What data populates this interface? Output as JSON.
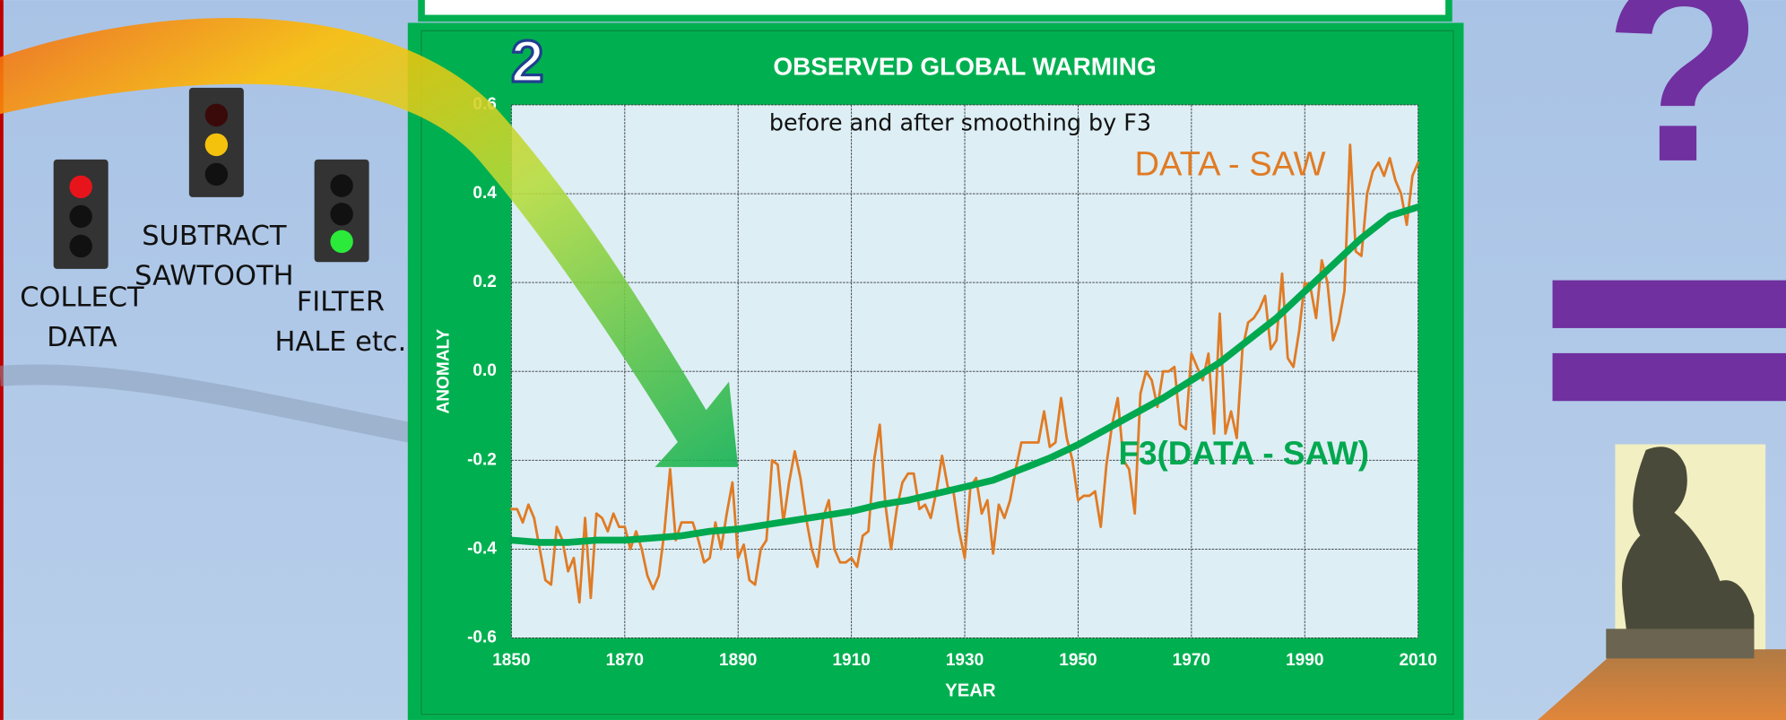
{
  "chart_data": {
    "type": "line",
    "badge": "2",
    "title": "OBSERVED GLOBAL WARMING",
    "subtitle": "before and after smoothing by F3",
    "xlabel": "YEAR",
    "ylabel": "ANOMALY",
    "xlim": [
      1850,
      2010
    ],
    "xticks": [
      1850,
      1870,
      1890,
      1910,
      1930,
      1950,
      1970,
      1990,
      2010
    ],
    "ylim": [
      -0.6,
      0.6
    ],
    "yticks": [
      -0.6,
      -0.4,
      -0.2,
      {
        "value": 0,
        "label": "0.0"
      },
      0.2,
      0.4,
      0.6
    ],
    "grid": true,
    "series": [
      {
        "name": "DATA - SAW",
        "color": "#e07b24",
        "x": [
          1850,
          1851,
          1852,
          1853,
          1854,
          1855,
          1856,
          1857,
          1858,
          1859,
          1860,
          1861,
          1862,
          1863,
          1864,
          1865,
          1866,
          1867,
          1868,
          1869,
          1870,
          1871,
          1872,
          1873,
          1874,
          1875,
          1876,
          1877,
          1878,
          1879,
          1880,
          1881,
          1882,
          1883,
          1884,
          1885,
          1886,
          1887,
          1888,
          1889,
          1890,
          1891,
          1892,
          1893,
          1894,
          1895,
          1896,
          1897,
          1898,
          1899,
          1900,
          1901,
          1902,
          1903,
          1904,
          1905,
          1906,
          1907,
          1908,
          1909,
          1910,
          1911,
          1912,
          1913,
          1914,
          1915,
          1916,
          1917,
          1918,
          1919,
          1920,
          1921,
          1922,
          1923,
          1924,
          1925,
          1926,
          1927,
          1928,
          1929,
          1930,
          1931,
          1932,
          1933,
          1934,
          1935,
          1936,
          1937,
          1938,
          1939,
          1940,
          1941,
          1942,
          1943,
          1944,
          1945,
          1946,
          1947,
          1948,
          1949,
          1950,
          1951,
          1952,
          1953,
          1954,
          1955,
          1956,
          1957,
          1958,
          1959,
          1960,
          1961,
          1962,
          1963,
          1964,
          1965,
          1966,
          1967,
          1968,
          1969,
          1970,
          1971,
          1972,
          1973,
          1974,
          1975,
          1976,
          1977,
          1978,
          1979,
          1980,
          1981,
          1982,
          1983,
          1984,
          1985,
          1986,
          1987,
          1988,
          1989,
          1990,
          1991,
          1992,
          1993,
          1994,
          1995,
          1996,
          1997,
          1998,
          1999,
          2000,
          2001,
          2002,
          2003,
          2004,
          2005,
          2006,
          2007,
          2008,
          2009,
          2010
        ],
        "values": [
          -0.31,
          -0.31,
          -0.34,
          -0.3,
          -0.33,
          -0.4,
          -0.47,
          -0.48,
          -0.35,
          -0.38,
          -0.45,
          -0.42,
          -0.52,
          -0.33,
          -0.51,
          -0.32,
          -0.33,
          -0.36,
          -0.32,
          -0.35,
          -0.35,
          -0.4,
          -0.36,
          -0.4,
          -0.46,
          -0.49,
          -0.46,
          -0.36,
          -0.22,
          -0.38,
          -0.34,
          -0.34,
          -0.34,
          -0.38,
          -0.43,
          -0.42,
          -0.34,
          -0.4,
          -0.32,
          -0.25,
          -0.42,
          -0.39,
          -0.47,
          -0.48,
          -0.4,
          -0.38,
          -0.2,
          -0.21,
          -0.34,
          -0.25,
          -0.18,
          -0.24,
          -0.33,
          -0.4,
          -0.44,
          -0.33,
          -0.29,
          -0.4,
          -0.43,
          -0.43,
          -0.42,
          -0.44,
          -0.37,
          -0.36,
          -0.2,
          -0.12,
          -0.3,
          -0.4,
          -0.31,
          -0.25,
          -0.23,
          -0.23,
          -0.31,
          -0.3,
          -0.33,
          -0.27,
          -0.19,
          -0.26,
          -0.27,
          -0.36,
          -0.42,
          -0.26,
          -0.24,
          -0.32,
          -0.29,
          -0.41,
          -0.3,
          -0.33,
          -0.29,
          -0.22,
          -0.16,
          -0.16,
          -0.16,
          -0.16,
          -0.09,
          -0.17,
          -0.16,
          -0.06,
          -0.15,
          -0.2,
          -0.29,
          -0.28,
          -0.28,
          -0.27,
          -0.35,
          -0.21,
          -0.12,
          -0.06,
          -0.2,
          -0.22,
          -0.32,
          -0.05,
          0,
          -0.02,
          -0.08,
          0,
          0,
          0.01,
          -0.12,
          -0.13,
          0.04,
          0.01,
          -0.02,
          0.04,
          -0.14,
          0.13,
          -0.14,
          -0.09,
          -0.15,
          0.05,
          0.11,
          0.12,
          0.14,
          0.17,
          0.05,
          0.07,
          0.22,
          0.03,
          0.01,
          0.09,
          0.2,
          0.19,
          0.12,
          0.25,
          0.2,
          0.07,
          0.11,
          0.18,
          0.51,
          0.27,
          0.26,
          0.4,
          0.45,
          0.47,
          0.44,
          0.48,
          0.43,
          0.4,
          0.33,
          0.44,
          0.47
        ]
      },
      {
        "name": "F3(DATA - SAW)",
        "color": "#00a84f",
        "x": [
          1850,
          1855,
          1860,
          1865,
          1870,
          1875,
          1880,
          1885,
          1890,
          1895,
          1900,
          1905,
          1910,
          1915,
          1920,
          1925,
          1930,
          1935,
          1940,
          1945,
          1950,
          1955,
          1960,
          1965,
          1970,
          1975,
          1980,
          1985,
          1990,
          1995,
          2000,
          2005,
          2010
        ],
        "values": [
          -0.38,
          -0.385,
          -0.385,
          -0.38,
          -0.38,
          -0.375,
          -0.37,
          -0.36,
          -0.355,
          -0.345,
          -0.335,
          -0.325,
          -0.315,
          -0.3,
          -0.29,
          -0.275,
          -0.26,
          -0.245,
          -0.22,
          -0.195,
          -0.165,
          -0.13,
          -0.095,
          -0.06,
          -0.02,
          0.02,
          0.07,
          0.12,
          0.18,
          0.24,
          0.3,
          0.35,
          0.37
        ]
      }
    ]
  },
  "steps": [
    {
      "lines": [
        "COLLECT",
        "DATA"
      ]
    },
    {
      "lines": [
        "SUBTRACT",
        "SAWTOOTH"
      ]
    },
    {
      "lines": [
        "FILTER",
        "HALE etc."
      ]
    }
  ],
  "question": "?"
}
